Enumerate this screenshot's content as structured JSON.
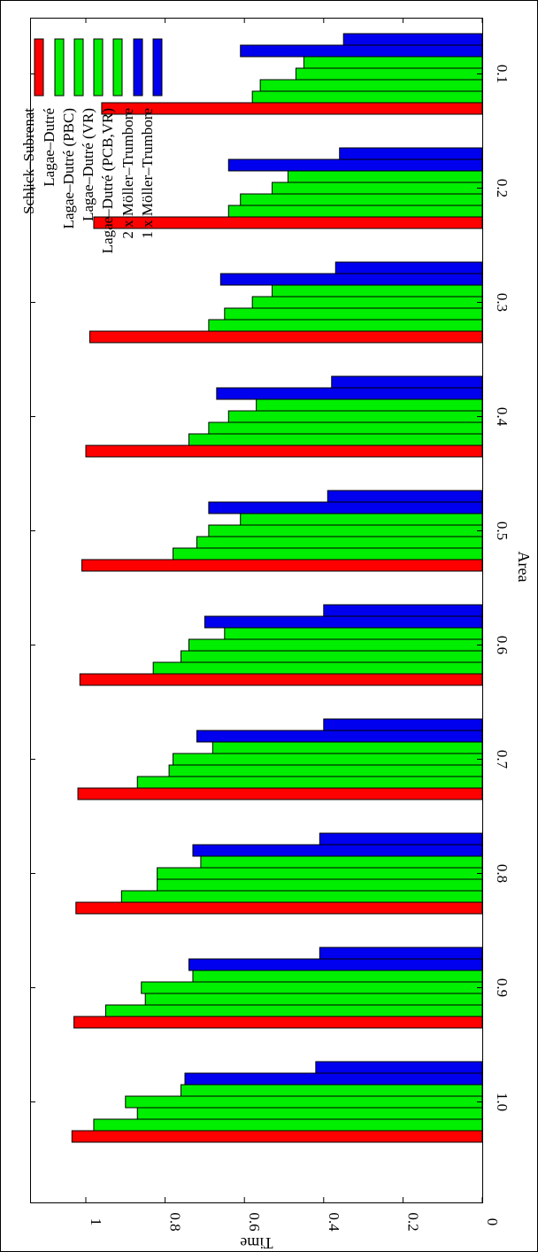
{
  "chart_data": {
    "type": "bar",
    "orientation": "rotated-90",
    "xlabel": "Area",
    "ylabel": "Time",
    "ylim": [
      0,
      1.1
    ],
    "grid": false,
    "legend_placement": "top-right",
    "categories": [
      "0.1",
      "0.2",
      "0.3",
      "0.4",
      "0.5",
      "0.6",
      "0.7",
      "0.8",
      "0.9",
      "1.0"
    ],
    "y_ticks": [
      "0",
      "0.2",
      "0.4",
      "0.6",
      "0.8",
      "1"
    ],
    "series": [
      {
        "name": "Schlick–Subrenat",
        "color": "#ff0000",
        "values": [
          0.96,
          0.98,
          0.99,
          1.0,
          1.01,
          1.015,
          1.02,
          1.025,
          1.03,
          1.035
        ]
      },
      {
        "name": "Lagae–Dutré",
        "color": "#00ee00",
        "values": [
          0.58,
          0.64,
          0.69,
          0.74,
          0.78,
          0.83,
          0.87,
          0.91,
          0.95,
          0.98
        ]
      },
      {
        "name": "Lagae–Dutré (PBC)",
        "color": "#00ee00",
        "values": [
          0.56,
          0.61,
          0.65,
          0.69,
          0.72,
          0.76,
          0.79,
          0.82,
          0.85,
          0.87
        ]
      },
      {
        "name": "Lagae–Dutré (VR)",
        "color": "#00ee00",
        "values": [
          0.47,
          0.53,
          0.58,
          0.64,
          0.69,
          0.74,
          0.78,
          0.82,
          0.86,
          0.9
        ]
      },
      {
        "name": "Lagae–Dutré (PCB,VR)",
        "color": "#00ee00",
        "values": [
          0.45,
          0.49,
          0.53,
          0.57,
          0.61,
          0.65,
          0.68,
          0.71,
          0.73,
          0.76
        ]
      },
      {
        "name": "2 x Möller–Trumbore",
        "color": "#0000ee",
        "values": [
          0.61,
          0.64,
          0.66,
          0.67,
          0.69,
          0.7,
          0.72,
          0.73,
          0.74,
          0.75
        ]
      },
      {
        "name": "1 x Möller–Trumbore",
        "color": "#0000ee",
        "values": [
          0.35,
          0.36,
          0.37,
          0.38,
          0.39,
          0.4,
          0.4,
          0.41,
          0.41,
          0.42
        ]
      }
    ]
  }
}
